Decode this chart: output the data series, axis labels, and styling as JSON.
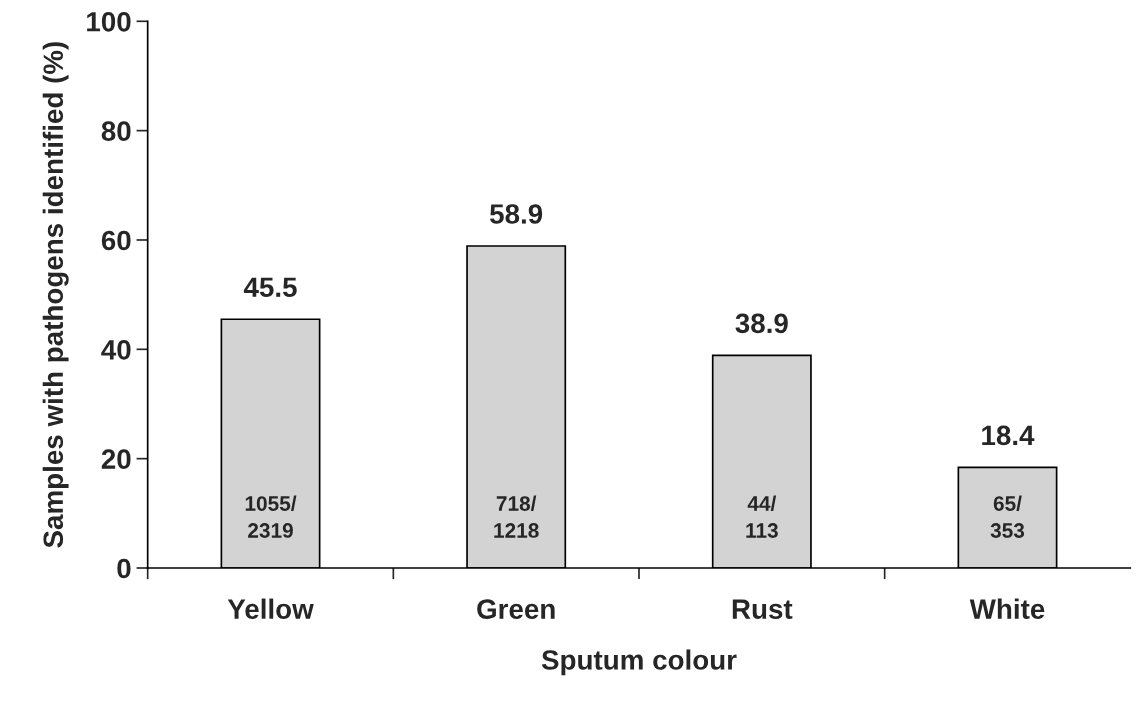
{
  "chart_data": {
    "type": "bar",
    "xlabel": "Sputum colour",
    "ylabel": "Samples with pathogens identified (%)",
    "categories": [
      "Yellow",
      "Green",
      "Rust",
      "White"
    ],
    "values": [
      45.5,
      58.9,
      38.9,
      18.4
    ],
    "color": "#d3d3d3",
    "ylim": [
      0,
      100
    ],
    "yticks": [
      0,
      20,
      40,
      60,
      80,
      100
    ],
    "grid": false,
    "data_labels": true,
    "annotations": [
      "1055/\n2319",
      "718/\n1218",
      "44/\n113",
      "65/\n353"
    ]
  }
}
